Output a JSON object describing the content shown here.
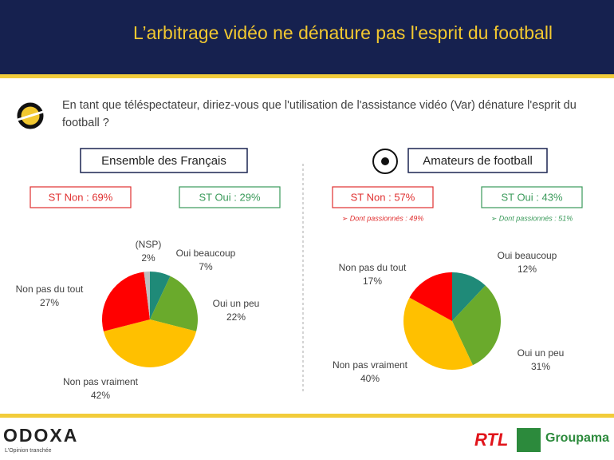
{
  "header": {
    "title": "L’arbitrage vidéo ne dénature pas l'esprit du football"
  },
  "question": "En tant que téléspectateur, diriez-vous que l'utilisation de l'assistance vidéo (Var) dénature l'esprit du football ?",
  "footer": {
    "brand": "ODOXA",
    "tagline": "L'Opinion tranchée",
    "logos": [
      "RTL",
      "Groupama"
    ]
  },
  "chart_data": [
    {
      "type": "pie",
      "title": "Ensemble des Français",
      "summaries": [
        {
          "text": "ST Non : 69%",
          "color": "#e03030"
        },
        {
          "text": "ST Oui : 29%",
          "color": "#3a9a5a"
        }
      ],
      "categories": [
        "Oui beaucoup",
        "Oui un peu",
        "Non pas vraiment",
        "Non pas du tout",
        "(NSP)"
      ],
      "values": [
        7,
        22,
        42,
        27,
        2
      ],
      "value_labels": [
        "7%",
        "22%",
        "42%",
        "27%",
        "2%"
      ],
      "colors": [
        "#1f8a78",
        "#6aaa2c",
        "#ffc000",
        "#ff0000",
        "#bfbfbf"
      ]
    },
    {
      "type": "pie",
      "title": "Amateurs de football",
      "summaries": [
        {
          "text": "ST Non : 57%",
          "color": "#e03030",
          "note": "➢  Dont passionnés : 49%"
        },
        {
          "text": "ST Oui : 43%",
          "color": "#3a9a5a",
          "note": "➢  Dont passionnés : 51%"
        }
      ],
      "categories": [
        "Oui beaucoup",
        "Oui un peu",
        "Non pas vraiment",
        "Non pas du tout"
      ],
      "values": [
        12,
        31,
        40,
        17
      ],
      "value_labels": [
        "12%",
        "31%",
        "40%",
        "17%"
      ],
      "colors": [
        "#1f8a78",
        "#6aaa2c",
        "#ffc000",
        "#ff0000"
      ]
    }
  ]
}
